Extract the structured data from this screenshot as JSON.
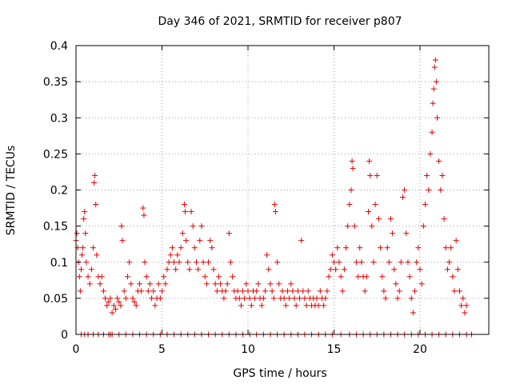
{
  "chart_data": {
    "type": "scatter",
    "title": "Day 346 of 2021, SRMTID for receiver p807",
    "xlabel": "GPS time / hours",
    "ylabel": "SRMTID / TECUs",
    "xlim": [
      0,
      24
    ],
    "ylim": [
      0,
      0.4
    ],
    "xticks": [
      0,
      5,
      10,
      15,
      20
    ],
    "xtick_labels": [
      "0",
      "5",
      "10",
      "15",
      "20"
    ],
    "yticks": [
      0,
      0.05,
      0.1,
      0.15,
      0.2,
      0.25,
      0.3,
      0.35,
      0.4
    ],
    "ytick_labels": [
      "0",
      "0.05",
      "0.1",
      "0.15",
      "0.2",
      "0.25",
      "0.3",
      "0.35",
      "0.4"
    ],
    "grid": true,
    "marker": "+",
    "marker_color": "#e00000",
    "series": [
      {
        "name": "SRMTID",
        "points": [
          [
            0.0,
            0.13
          ],
          [
            0.05,
            0.14
          ],
          [
            0.1,
            0.12
          ],
          [
            0.15,
            0.1
          ],
          [
            0.2,
            0.08
          ],
          [
            0.25,
            0.06
          ],
          [
            0.3,
            0.09
          ],
          [
            0.35,
            0.11
          ],
          [
            0.4,
            0.12
          ],
          [
            0.45,
            0.16
          ],
          [
            0.5,
            0.17
          ],
          [
            0.55,
            0.14
          ],
          [
            0.6,
            0.1
          ],
          [
            0.7,
            0.08
          ],
          [
            0.8,
            0.07
          ],
          [
            0.9,
            0.09
          ],
          [
            1.0,
            0.12
          ],
          [
            1.05,
            0.21
          ],
          [
            1.1,
            0.22
          ],
          [
            1.15,
            0.18
          ],
          [
            1.2,
            0.11
          ],
          [
            1.3,
            0.08
          ],
          [
            1.4,
            0.07
          ],
          [
            1.5,
            0.08
          ],
          [
            1.6,
            0.06
          ],
          [
            1.7,
            0.05
          ],
          [
            1.8,
            0.04
          ],
          [
            1.9,
            0.045
          ],
          [
            2.0,
            0.05
          ],
          [
            2.1,
            0.03
          ],
          [
            2.2,
            0.04
          ],
          [
            2.3,
            0.035
          ],
          [
            2.4,
            0.05
          ],
          [
            2.5,
            0.045
          ],
          [
            2.6,
            0.04
          ],
          [
            2.65,
            0.15
          ],
          [
            2.7,
            0.13
          ],
          [
            2.8,
            0.06
          ],
          [
            2.9,
            0.05
          ],
          [
            3.0,
            0.08
          ],
          [
            3.1,
            0.1
          ],
          [
            3.2,
            0.07
          ],
          [
            3.3,
            0.05
          ],
          [
            3.4,
            0.045
          ],
          [
            3.5,
            0.04
          ],
          [
            3.6,
            0.06
          ],
          [
            3.7,
            0.07
          ],
          [
            3.8,
            0.06
          ],
          [
            3.9,
            0.175
          ],
          [
            3.95,
            0.165
          ],
          [
            4.0,
            0.1
          ],
          [
            4.1,
            0.08
          ],
          [
            4.2,
            0.06
          ],
          [
            4.3,
            0.07
          ],
          [
            4.4,
            0.05
          ],
          [
            4.5,
            0.06
          ],
          [
            4.6,
            0.04
          ],
          [
            4.7,
            0.05
          ],
          [
            4.8,
            0.07
          ],
          [
            4.9,
            0.05
          ],
          [
            5.0,
            0.06
          ],
          [
            5.1,
            0.08
          ],
          [
            5.2,
            0.07
          ],
          [
            5.3,
            0.09
          ],
          [
            5.4,
            0.1
          ],
          [
            5.5,
            0.11
          ],
          [
            5.6,
            0.12
          ],
          [
            5.7,
            0.1
          ],
          [
            5.8,
            0.09
          ],
          [
            5.9,
            0.11
          ],
          [
            6.0,
            0.1
          ],
          [
            6.1,
            0.12
          ],
          [
            6.2,
            0.14
          ],
          [
            6.3,
            0.18
          ],
          [
            6.35,
            0.17
          ],
          [
            6.4,
            0.13
          ],
          [
            6.5,
            0.1
          ],
          [
            6.6,
            0.09
          ],
          [
            6.7,
            0.17
          ],
          [
            6.8,
            0.15
          ],
          [
            6.9,
            0.12
          ],
          [
            7.0,
            0.1
          ],
          [
            7.1,
            0.09
          ],
          [
            7.2,
            0.13
          ],
          [
            7.3,
            0.15
          ],
          [
            7.4,
            0.1
          ],
          [
            7.5,
            0.08
          ],
          [
            7.6,
            0.07
          ],
          [
            7.7,
            0.1
          ],
          [
            7.8,
            0.13
          ],
          [
            7.9,
            0.12
          ],
          [
            8.0,
            0.09
          ],
          [
            8.1,
            0.07
          ],
          [
            8.2,
            0.06
          ],
          [
            8.3,
            0.08
          ],
          [
            8.4,
            0.07
          ],
          [
            8.5,
            0.06
          ],
          [
            8.6,
            0.05
          ],
          [
            8.7,
            0.06
          ],
          [
            8.8,
            0.07
          ],
          [
            8.9,
            0.14
          ],
          [
            9.0,
            0.1
          ],
          [
            9.1,
            0.08
          ],
          [
            9.2,
            0.06
          ],
          [
            9.3,
            0.05
          ],
          [
            9.4,
            0.06
          ],
          [
            9.5,
            0.05
          ],
          [
            9.6,
            0.04
          ],
          [
            9.7,
            0.06
          ],
          [
            9.8,
            0.05
          ],
          [
            9.9,
            0.07
          ],
          [
            10.0,
            0.06
          ],
          [
            10.1,
            0.05
          ],
          [
            10.2,
            0.04
          ],
          [
            10.3,
            0.06
          ],
          [
            10.4,
            0.05
          ],
          [
            10.5,
            0.06
          ],
          [
            10.6,
            0.07
          ],
          [
            10.7,
            0.05
          ],
          [
            10.8,
            0.04
          ],
          [
            10.9,
            0.05
          ],
          [
            11.0,
            0.06
          ],
          [
            11.1,
            0.11
          ],
          [
            11.2,
            0.09
          ],
          [
            11.3,
            0.07
          ],
          [
            11.4,
            0.06
          ],
          [
            11.5,
            0.05
          ],
          [
            11.55,
            0.18
          ],
          [
            11.6,
            0.17
          ],
          [
            11.7,
            0.1
          ],
          [
            11.8,
            0.07
          ],
          [
            11.9,
            0.05
          ],
          [
            12.0,
            0.06
          ],
          [
            12.1,
            0.05
          ],
          [
            12.2,
            0.04
          ],
          [
            12.3,
            0.06
          ],
          [
            12.4,
            0.05
          ],
          [
            12.5,
            0.07
          ],
          [
            12.6,
            0.06
          ],
          [
            12.7,
            0.05
          ],
          [
            12.8,
            0.04
          ],
          [
            12.9,
            0.06
          ],
          [
            13.0,
            0.05
          ],
          [
            13.1,
            0.13
          ],
          [
            13.2,
            0.06
          ],
          [
            13.3,
            0.05
          ],
          [
            13.4,
            0.04
          ],
          [
            13.5,
            0.06
          ],
          [
            13.6,
            0.05
          ],
          [
            13.7,
            0.04
          ],
          [
            13.8,
            0.05
          ],
          [
            13.9,
            0.04
          ],
          [
            14.0,
            0.05
          ],
          [
            14.1,
            0.04
          ],
          [
            14.2,
            0.06
          ],
          [
            14.3,
            0.05
          ],
          [
            14.4,
            0.04
          ],
          [
            14.5,
            0.05
          ],
          [
            14.6,
            0.06
          ],
          [
            14.7,
            0.08
          ],
          [
            14.8,
            0.09
          ],
          [
            14.9,
            0.11
          ],
          [
            15.0,
            0.1
          ],
          [
            15.1,
            0.09
          ],
          [
            15.2,
            0.12
          ],
          [
            15.3,
            0.1
          ],
          [
            15.4,
            0.08
          ],
          [
            15.5,
            0.06
          ],
          [
            15.6,
            0.09
          ],
          [
            15.7,
            0.12
          ],
          [
            15.8,
            0.15
          ],
          [
            15.9,
            0.18
          ],
          [
            16.0,
            0.2
          ],
          [
            16.05,
            0.24
          ],
          [
            16.1,
            0.23
          ],
          [
            16.2,
            0.15
          ],
          [
            16.3,
            0.1
          ],
          [
            16.4,
            0.08
          ],
          [
            16.5,
            0.12
          ],
          [
            16.6,
            0.1
          ],
          [
            16.7,
            0.08
          ],
          [
            16.8,
            0.06
          ],
          [
            16.9,
            0.08
          ],
          [
            17.0,
            0.17
          ],
          [
            17.05,
            0.24
          ],
          [
            17.1,
            0.22
          ],
          [
            17.2,
            0.15
          ],
          [
            17.3,
            0.1
          ],
          [
            17.4,
            0.18
          ],
          [
            17.5,
            0.22
          ],
          [
            17.6,
            0.16
          ],
          [
            17.7,
            0.12
          ],
          [
            17.8,
            0.08
          ],
          [
            17.9,
            0.06
          ],
          [
            18.0,
            0.05
          ],
          [
            18.1,
            0.12
          ],
          [
            18.2,
            0.1
          ],
          [
            18.3,
            0.16
          ],
          [
            18.4,
            0.14
          ],
          [
            18.5,
            0.09
          ],
          [
            18.6,
            0.07
          ],
          [
            18.7,
            0.05
          ],
          [
            18.8,
            0.06
          ],
          [
            18.9,
            0.1
          ],
          [
            19.0,
            0.19
          ],
          [
            19.1,
            0.2
          ],
          [
            19.2,
            0.14
          ],
          [
            19.3,
            0.1
          ],
          [
            19.4,
            0.08
          ],
          [
            19.5,
            0.05
          ],
          [
            19.6,
            0.03
          ],
          [
            19.7,
            0.06
          ],
          [
            19.8,
            0.1
          ],
          [
            19.9,
            0.12
          ],
          [
            20.0,
            0.09
          ],
          [
            20.1,
            0.07
          ],
          [
            20.2,
            0.15
          ],
          [
            20.3,
            0.18
          ],
          [
            20.4,
            0.22
          ],
          [
            20.5,
            0.2
          ],
          [
            20.6,
            0.25
          ],
          [
            20.7,
            0.28
          ],
          [
            20.75,
            0.32
          ],
          [
            20.8,
            0.34
          ],
          [
            20.85,
            0.37
          ],
          [
            20.9,
            0.38
          ],
          [
            20.95,
            0.35
          ],
          [
            21.0,
            0.3
          ],
          [
            21.1,
            0.24
          ],
          [
            21.2,
            0.2
          ],
          [
            21.3,
            0.22
          ],
          [
            21.4,
            0.16
          ],
          [
            21.5,
            0.12
          ],
          [
            21.6,
            0.09
          ],
          [
            21.7,
            0.1
          ],
          [
            21.8,
            0.12
          ],
          [
            21.9,
            0.08
          ],
          [
            22.0,
            0.06
          ],
          [
            22.1,
            0.13
          ],
          [
            22.2,
            0.09
          ],
          [
            22.3,
            0.06
          ],
          [
            22.4,
            0.04
          ],
          [
            22.5,
            0.05
          ],
          [
            22.6,
            0.03
          ],
          [
            22.7,
            0.04
          ]
        ],
        "zero_points": [
          0.3,
          0.5,
          0.7,
          1.0,
          1.3,
          1.6,
          1.9,
          2.0,
          2.1,
          2.5,
          2.9,
          3.3,
          3.7,
          4.1,
          4.5,
          4.9,
          5.3,
          5.7,
          6.1,
          6.5,
          6.9,
          7.3,
          7.7,
          8.1,
          8.5,
          8.9,
          9.3,
          9.7,
          10.1,
          10.5,
          10.9,
          11.3,
          11.7,
          12.1,
          12.5,
          12.9,
          13.3,
          13.7,
          14.1,
          14.5,
          14.9,
          15.4,
          15.9,
          16.3,
          16.7,
          17.1,
          17.5,
          17.9,
          18.3,
          18.7,
          19.1,
          19.5,
          19.9,
          20.3,
          20.7,
          21.1,
          21.5,
          21.9,
          22.3,
          22.7,
          23.0
        ]
      }
    ]
  }
}
